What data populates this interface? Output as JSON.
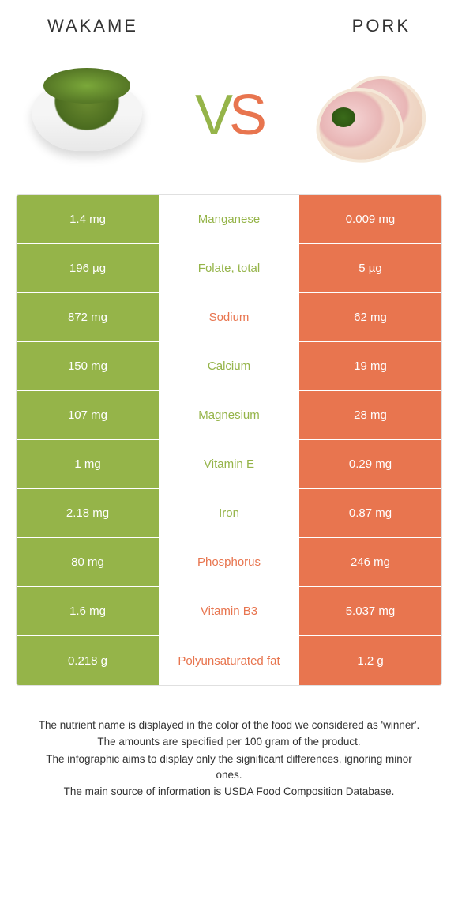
{
  "header": {
    "left_title": "WAKAME",
    "right_title": "PORK"
  },
  "vs": {
    "v": "V",
    "s": "S"
  },
  "colors": {
    "left": "#95b449",
    "right": "#e8754f",
    "mid_bg": "#ffffff",
    "text_white": "#ffffff"
  },
  "table": {
    "rows": [
      {
        "left": "1.4 mg",
        "label": "Manganese",
        "right": "0.009 mg",
        "winner": "left"
      },
      {
        "left": "196 µg",
        "label": "Folate, total",
        "right": "5 µg",
        "winner": "left"
      },
      {
        "left": "872 mg",
        "label": "Sodium",
        "right": "62 mg",
        "winner": "right"
      },
      {
        "left": "150 mg",
        "label": "Calcium",
        "right": "19 mg",
        "winner": "left"
      },
      {
        "left": "107 mg",
        "label": "Magnesium",
        "right": "28 mg",
        "winner": "left"
      },
      {
        "left": "1 mg",
        "label": "Vitamin E",
        "right": "0.29 mg",
        "winner": "left"
      },
      {
        "left": "2.18 mg",
        "label": "Iron",
        "right": "0.87 mg",
        "winner": "left"
      },
      {
        "left": "80 mg",
        "label": "Phosphorus",
        "right": "246 mg",
        "winner": "right"
      },
      {
        "left": "1.6 mg",
        "label": "Vitamin B3",
        "right": "5.037 mg",
        "winner": "right"
      },
      {
        "left": "0.218 g",
        "label": "Polyunsaturated fat",
        "right": "1.2 g",
        "winner": "right"
      }
    ]
  },
  "footer": {
    "line1": "The nutrient name is displayed in the color of the food we considered as 'winner'.",
    "line2": "The amounts are specified per 100 gram of the product.",
    "line3": "The infographic aims to display only the significant differences, ignoring minor ones.",
    "line4": "The main source of information is USDA Food Composition Database."
  }
}
